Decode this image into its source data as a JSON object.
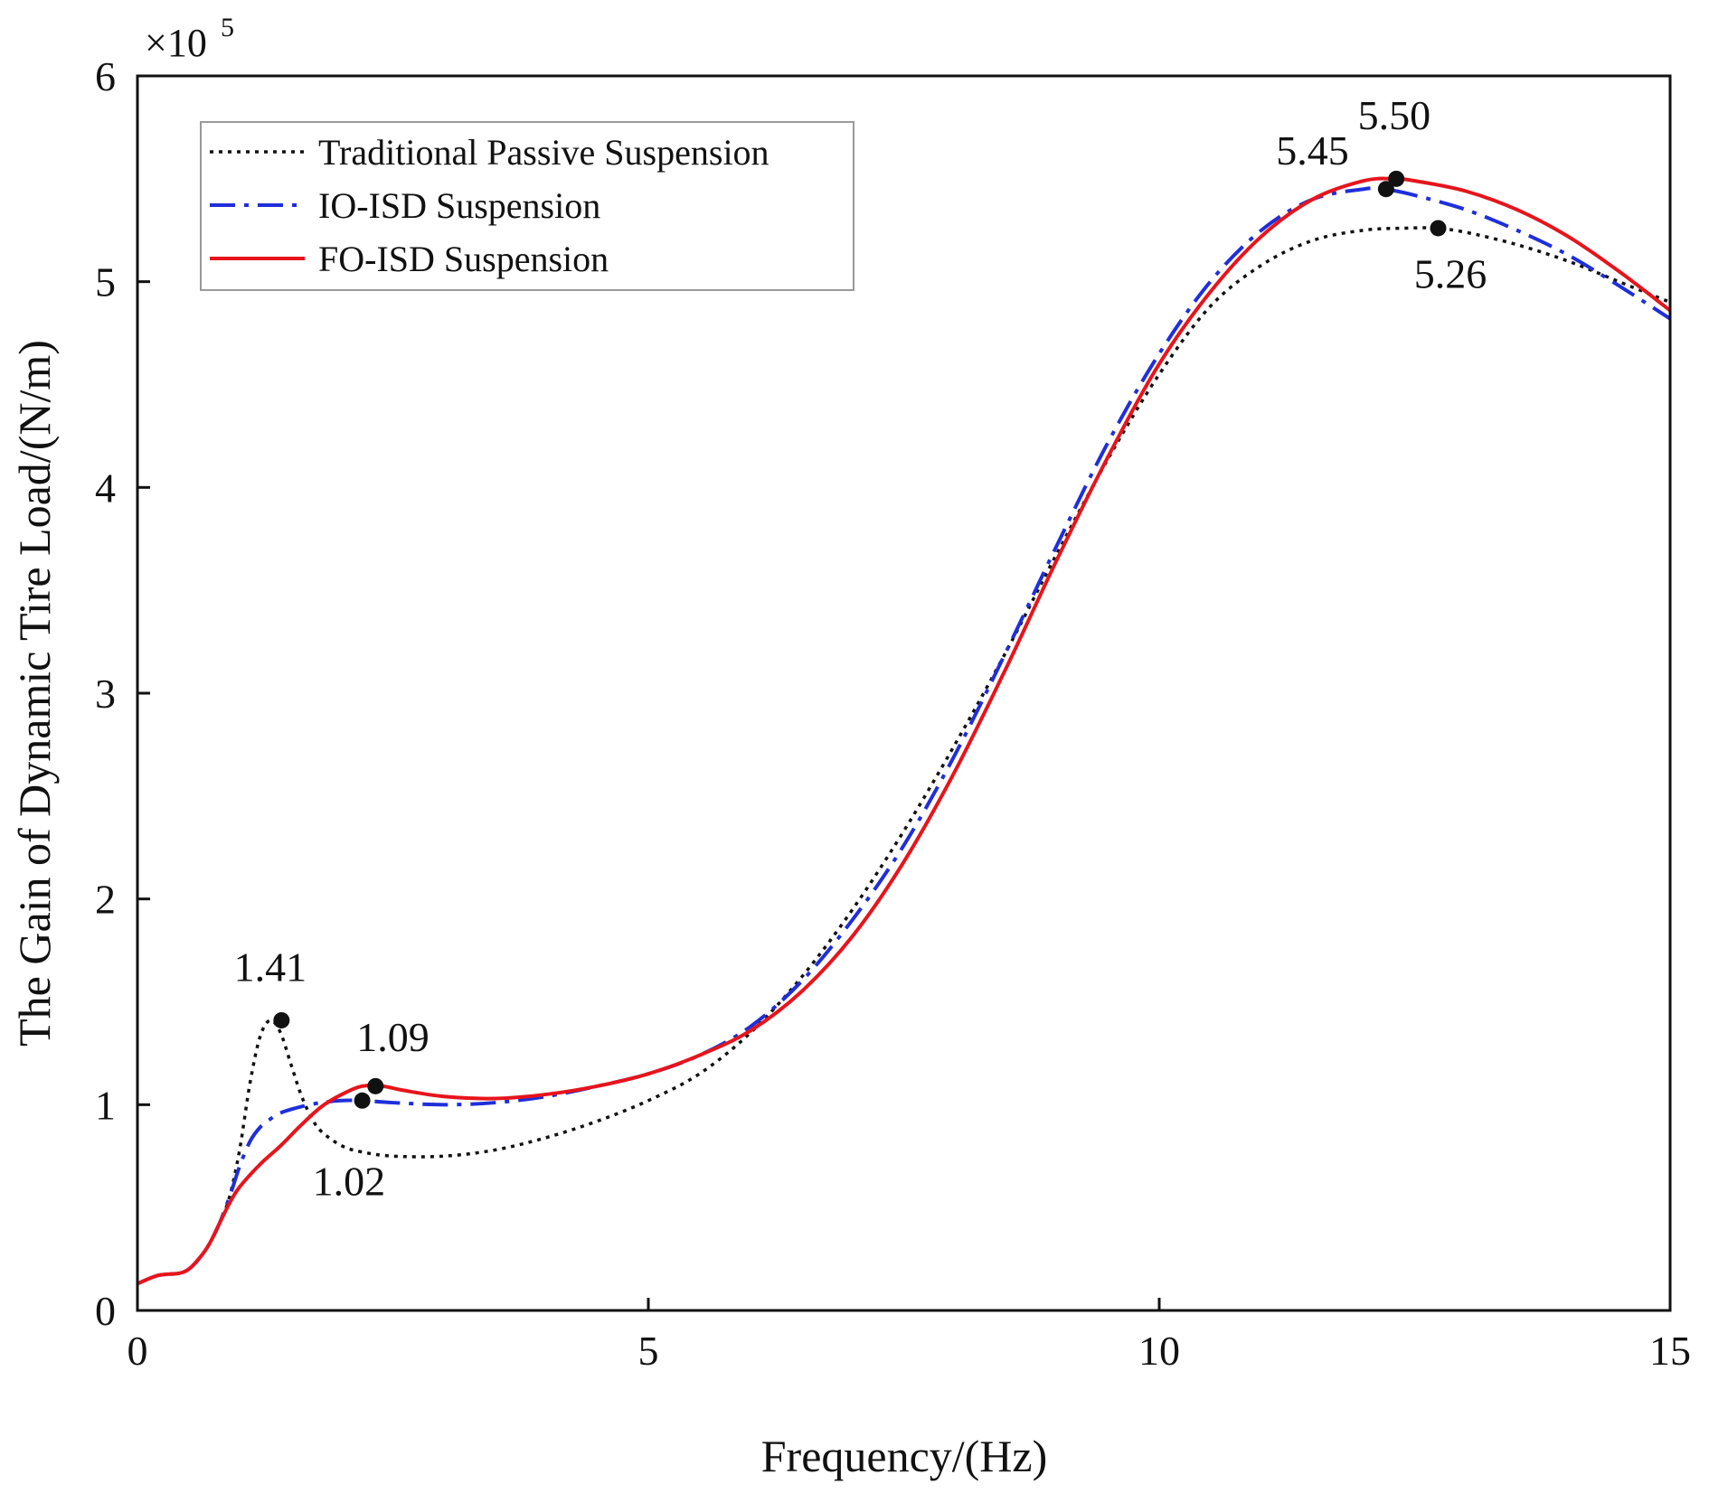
{
  "chart_data": {
    "type": "line",
    "xlabel": "Frequency/(Hz)",
    "ylabel": "The Gain of Dynamic Tire Load/(N/m)",
    "y_multiplier_label": "×10",
    "y_multiplier_exponent": "5",
    "xlim": [
      0,
      15
    ],
    "ylim": [
      0,
      6
    ],
    "x_ticks": [
      0,
      5,
      10,
      15
    ],
    "x_tick_labels": [
      "0",
      "5",
      "10",
      "15"
    ],
    "y_ticks": [
      0,
      1,
      2,
      3,
      4,
      5,
      6
    ],
    "y_tick_labels": [
      "0",
      "1",
      "2",
      "3",
      "4",
      "5",
      "6"
    ],
    "grid": false,
    "legend_position": "top-left",
    "series": [
      {
        "name": "Traditional Passive Suspension",
        "color": "#111111",
        "style": "dotted",
        "x": [
          0,
          0.2,
          0.4,
          0.5,
          0.6,
          0.7,
          0.8,
          0.9,
          1.0,
          1.1,
          1.2,
          1.3,
          1.4,
          1.5,
          1.6,
          1.7,
          1.8,
          2.0,
          2.2,
          2.5,
          3.0,
          3.5,
          4.0,
          4.5,
          5.0,
          5.5,
          6.0,
          6.5,
          7.0,
          7.5,
          8.0,
          8.5,
          9.0,
          9.5,
          10.0,
          10.5,
          11.0,
          11.5,
          12.0,
          12.4,
          12.7,
          13.0,
          13.5,
          14.0,
          14.5,
          15.0
        ],
        "values": [
          0.13,
          0.17,
          0.18,
          0.2,
          0.25,
          0.32,
          0.42,
          0.55,
          0.78,
          1.1,
          1.33,
          1.41,
          1.35,
          1.2,
          1.05,
          0.94,
          0.87,
          0.8,
          0.77,
          0.75,
          0.75,
          0.78,
          0.84,
          0.92,
          1.02,
          1.15,
          1.35,
          1.62,
          1.95,
          2.33,
          2.75,
          3.2,
          3.68,
          4.14,
          4.55,
          4.88,
          5.08,
          5.2,
          5.25,
          5.26,
          5.26,
          5.24,
          5.18,
          5.1,
          5.0,
          4.9
        ]
      },
      {
        "name": "IO-ISD Suspension",
        "color": "#1f2fd9",
        "style": "dash-dot",
        "x": [
          0,
          0.2,
          0.4,
          0.5,
          0.6,
          0.7,
          0.8,
          0.9,
          1.0,
          1.1,
          1.2,
          1.3,
          1.4,
          1.6,
          1.8,
          2.0,
          2.2,
          2.5,
          3.0,
          3.5,
          4.0,
          4.5,
          5.0,
          5.5,
          6.0,
          6.5,
          7.0,
          7.5,
          8.0,
          8.5,
          9.0,
          9.5,
          10.0,
          10.5,
          11.0,
          11.5,
          12.0,
          12.2,
          12.5,
          13.0,
          13.5,
          14.0,
          14.5,
          15.0
        ],
        "values": [
          0.13,
          0.17,
          0.18,
          0.2,
          0.25,
          0.32,
          0.42,
          0.55,
          0.7,
          0.82,
          0.89,
          0.93,
          0.96,
          0.99,
          1.01,
          1.02,
          1.02,
          1.01,
          1.0,
          1.01,
          1.04,
          1.09,
          1.15,
          1.24,
          1.38,
          1.6,
          1.9,
          2.26,
          2.7,
          3.2,
          3.72,
          4.22,
          4.65,
          5.0,
          5.25,
          5.4,
          5.45,
          5.45,
          5.42,
          5.35,
          5.25,
          5.13,
          4.98,
          4.82
        ]
      },
      {
        "name": "FO-ISD Suspension",
        "color": "#e8141b",
        "style": "solid",
        "x": [
          0,
          0.2,
          0.4,
          0.5,
          0.6,
          0.7,
          0.8,
          0.9,
          1.0,
          1.2,
          1.4,
          1.6,
          1.8,
          2.0,
          2.2,
          2.4,
          2.6,
          3.0,
          3.5,
          4.0,
          4.5,
          5.0,
          5.5,
          6.0,
          6.5,
          7.0,
          7.5,
          8.0,
          8.5,
          9.0,
          9.5,
          10.0,
          10.5,
          11.0,
          11.5,
          12.0,
          12.3,
          12.5,
          13.0,
          13.5,
          14.0,
          14.5,
          15.0
        ],
        "values": [
          0.13,
          0.17,
          0.18,
          0.2,
          0.25,
          0.32,
          0.42,
          0.52,
          0.6,
          0.71,
          0.8,
          0.9,
          0.99,
          1.05,
          1.09,
          1.09,
          1.07,
          1.04,
          1.03,
          1.05,
          1.09,
          1.15,
          1.24,
          1.36,
          1.55,
          1.82,
          2.18,
          2.62,
          3.12,
          3.65,
          4.15,
          4.6,
          4.95,
          5.22,
          5.4,
          5.49,
          5.5,
          5.49,
          5.44,
          5.35,
          5.22,
          5.05,
          4.86
        ]
      }
    ],
    "markers": [
      {
        "x": 1.41,
        "y": 1.41,
        "label": "1.41",
        "label_x": 1.3,
        "label_y": 1.6
      },
      {
        "x": 2.2,
        "y": 1.02,
        "label": "1.02",
        "label_x": 2.07,
        "label_y": 0.56
      },
      {
        "x": 2.33,
        "y": 1.09,
        "label": "1.09",
        "label_x": 2.5,
        "label_y": 1.26
      },
      {
        "x": 12.22,
        "y": 5.45,
        "label": "5.45",
        "label_x": 11.5,
        "label_y": 5.57
      },
      {
        "x": 12.32,
        "y": 5.5,
        "label": "5.50",
        "label_x": 12.3,
        "label_y": 5.74
      },
      {
        "x": 12.73,
        "y": 5.26,
        "label": "5.26",
        "label_x": 12.85,
        "label_y": 4.97
      }
    ]
  }
}
